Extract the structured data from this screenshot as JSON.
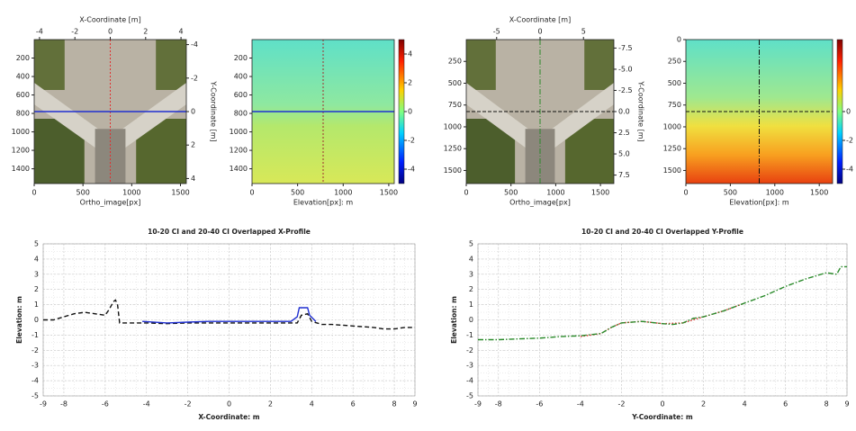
{
  "chart_data": [
    {
      "type": "image",
      "kind": "ortho",
      "xlabel": "Ortho_image[px]",
      "x2label": "X-Coordinate [m]",
      "y2label": "Y-Coordinate [m]",
      "xlim": [
        0,
        1560
      ],
      "xticks": [
        0,
        500,
        1000,
        1500
      ],
      "ylim": [
        1560,
        0
      ],
      "yticks": [
        200,
        400,
        600,
        800,
        1000,
        1200,
        1400
      ],
      "x2lim": [
        -4.3,
        4.3
      ],
      "x2ticks": [
        -4,
        -2,
        0,
        2,
        4
      ],
      "y2lim": [
        4.3,
        -4.3
      ],
      "y2ticks": [
        -4,
        -2,
        0,
        2,
        4
      ]
    },
    {
      "type": "image",
      "kind": "heatmap",
      "xlabel": "Elevation[px]: m",
      "xlim": [
        0,
        1560
      ],
      "xticks": [
        0,
        500,
        1000,
        1500
      ],
      "ylim": [
        1560,
        0
      ],
      "yticks": [
        200,
        400,
        600,
        800,
        1000,
        1200,
        1400
      ],
      "clim": [
        -5,
        5
      ],
      "cticks": [
        4,
        2,
        0,
        -2,
        -4
      ]
    },
    {
      "type": "image",
      "kind": "ortho",
      "xlabel": "Ortho_image[px]",
      "x2label": "X-Coordinate [m]",
      "y2label": "Y-Coordinate [m]",
      "xlim": [
        0,
        1650
      ],
      "xticks": [
        0,
        500,
        1000,
        1500
      ],
      "ylim": [
        1650,
        0
      ],
      "yticks": [
        250,
        500,
        750,
        1000,
        1250,
        1500
      ],
      "x2lim": [
        -8.5,
        8.5
      ],
      "x2ticks": [
        -5,
        0,
        5
      ],
      "y2lim": [
        8.5,
        -8.5
      ],
      "y2ticks": [
        -7.5,
        {
          "value": -5,
          "label": "-5.0"
        },
        -2.5,
        {
          "value": 0,
          "label": "0.0"
        },
        2.5,
        {
          "value": 5,
          "label": "5.0"
        },
        7.5
      ]
    },
    {
      "type": "image",
      "kind": "heatmap2",
      "xlabel": "Elevation[px]: m",
      "xlim": [
        0,
        1650
      ],
      "xticks": [
        0,
        500,
        1000,
        1500
      ],
      "ylim": [
        1650,
        0
      ],
      "yticks": [
        0,
        250,
        500,
        750,
        1000,
        1250,
        1500
      ],
      "clim": [
        -5,
        5
      ],
      "cticks": [
        0,
        -2,
        -4
      ]
    },
    {
      "type": "line",
      "title": "10-20 CI and 20-40 CI Overlapped X-Profile",
      "xlabel": "X-Coordinate: m",
      "ylabel": "Elevation: m",
      "xlim": [
        -9,
        9
      ],
      "xticks": [
        -9,
        -8,
        -6,
        -4,
        -2,
        0,
        2,
        4,
        6,
        8,
        9
      ],
      "ylim": [
        -5,
        5
      ],
      "yticks": [
        -5,
        -4,
        -3,
        -2,
        -1,
        0,
        1,
        2,
        3,
        4,
        5
      ],
      "grid": true,
      "series": [
        {
          "color": "#111111",
          "linestyle": "dashed",
          "x": [
            -9,
            -8.5,
            -8,
            -7.5,
            -7,
            -6.5,
            -6,
            -5.8,
            -5.6,
            -5.5,
            -5.4,
            -5.3,
            -5,
            -4,
            -3,
            -2,
            -1,
            0,
            1,
            2,
            3,
            3.3,
            3.5,
            3.8,
            4,
            4.5,
            5,
            6,
            7,
            7.5,
            8,
            8.5,
            9
          ],
          "values": [
            0,
            0,
            0.2,
            0.4,
            0.5,
            0.4,
            0.3,
            0.7,
            1.2,
            1.3,
            1.0,
            -0.2,
            -0.2,
            -0.2,
            -0.25,
            -0.2,
            -0.2,
            -0.2,
            -0.2,
            -0.2,
            -0.2,
            -0.2,
            0.3,
            0.4,
            -0.1,
            -0.3,
            -0.3,
            -0.4,
            -0.5,
            -0.6,
            -0.6,
            -0.5,
            -0.5
          ]
        },
        {
          "color": "#1f2fd0",
          "linestyle": "solid",
          "x": [
            -4.2,
            -3,
            -2,
            -1,
            0,
            1,
            2,
            3,
            3.3,
            3.4,
            3.8,
            3.9,
            4.2
          ],
          "values": [
            -0.1,
            -0.2,
            -0.15,
            -0.1,
            -0.1,
            -0.1,
            -0.1,
            -0.1,
            0.2,
            0.8,
            0.8,
            0.3,
            -0.1
          ]
        }
      ]
    },
    {
      "type": "line",
      "title": "10-20 CI and 20-40 CI Overlapped Y-Profile",
      "xlabel": "Y-Coordinate: m",
      "ylabel": "Elevation: m",
      "xlim": [
        -9,
        9
      ],
      "xticks": [
        -9,
        -8,
        -6,
        -4,
        -2,
        0,
        2,
        4,
        6,
        8,
        9
      ],
      "ylim": [
        -5,
        5
      ],
      "yticks": [
        -5,
        -4,
        -3,
        -2,
        -1,
        0,
        1,
        2,
        3,
        4,
        5
      ],
      "grid": true,
      "series": [
        {
          "color": "#e03030",
          "linestyle": "dotted",
          "x": [
            -4,
            -3,
            -2.5,
            -2,
            -1,
            0,
            1,
            2,
            3,
            4
          ],
          "values": [
            -1.1,
            -0.9,
            -0.5,
            -0.2,
            -0.1,
            -0.25,
            -0.2,
            0.2,
            0.6,
            1.1
          ]
        },
        {
          "color": "#2a8a2a",
          "linestyle": "dashdot",
          "x": [
            -9,
            -8,
            -7,
            -6,
            -5,
            -4,
            -3,
            -2.5,
            -2,
            -1,
            0,
            0.5,
            1,
            1.5,
            2,
            3,
            4,
            5,
            6,
            7,
            8,
            8.5,
            8.7,
            9
          ],
          "values": [
            -1.3,
            -1.3,
            -1.25,
            -1.2,
            -1.1,
            -1.05,
            -0.9,
            -0.5,
            -0.2,
            -0.1,
            -0.25,
            -0.3,
            -0.2,
            0.1,
            0.2,
            0.6,
            1.1,
            1.6,
            2.2,
            2.7,
            3.1,
            3.0,
            3.5,
            3.5
          ]
        }
      ]
    }
  ]
}
